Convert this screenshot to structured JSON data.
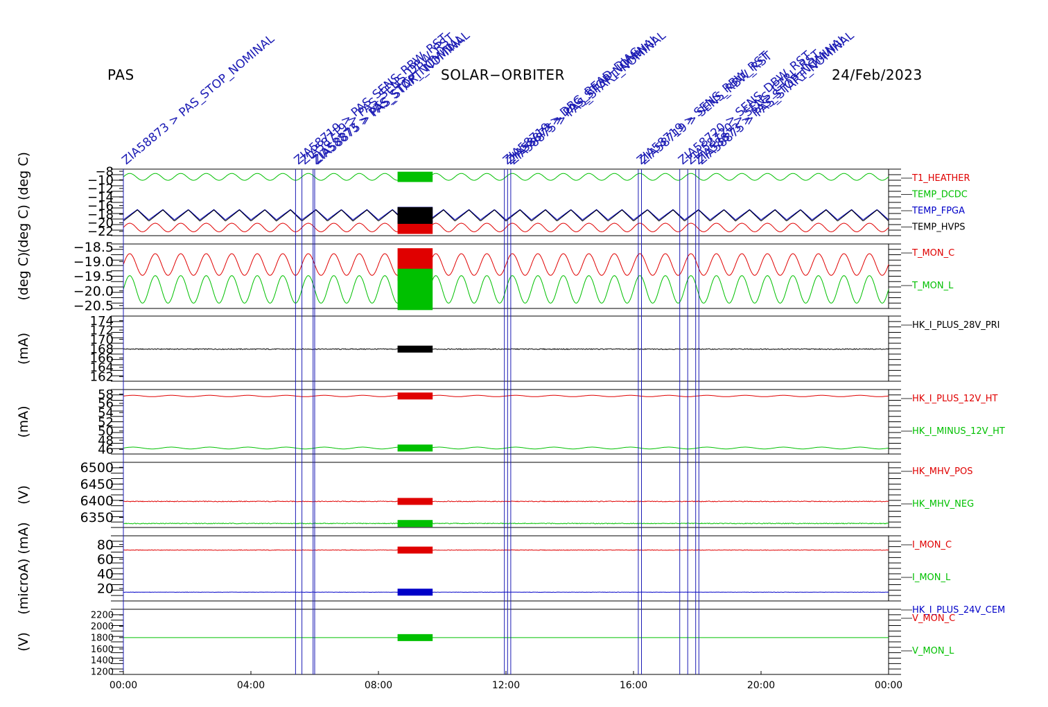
{
  "header": {
    "left": "PAS",
    "center": "SOLAR−ORBITER",
    "right": "24/Feb/2023"
  },
  "colors": {
    "red": "#e00000",
    "green": "#00c000",
    "blue": "#0000c8",
    "black": "#000000",
    "event_line": "#1a1ab4"
  },
  "x_ticks": [
    "00:00",
    "04:00",
    "08:00",
    "12:00",
    "16:00",
    "20:00",
    "00:00"
  ],
  "events": [
    {
      "hour": 0.0,
      "label": "ZIA58873 > PAS_STOP_NOMINAL"
    },
    {
      "hour": 5.4,
      "label": "ZIA58719 > PAS_SENS_RBW_RST"
    },
    {
      "hour": 5.6,
      "label": "ZIA58719 > PAS_SENS_DBW_RST"
    },
    {
      "hour": 5.95,
      "label": "ZIA58873 > PAS_STOP_NOMINAL"
    },
    {
      "hour": 6.0,
      "label": "ZIA58875 > PAS_START_NOMINAL"
    },
    {
      "hour": 11.95,
      "label": "ZIA58719 > DBG_READ_DIAG"
    },
    {
      "hour": 12.05,
      "label": "ZIA58873 > PAS_STOP_NOMINAL"
    },
    {
      "hour": 12.15,
      "label": "ZIA58875 > PAS_START_NOMINAL"
    },
    {
      "hour": 16.15,
      "label": "ZIA58719 > SENS_RBW_RST"
    },
    {
      "hour": 16.25,
      "label": "ZIA58719 > SENS_RBW_RST"
    },
    {
      "hour": 17.45,
      "label": "ZIA58720 > SENS_DBW_RST"
    },
    {
      "hour": 17.7,
      "label": "ZIA58720 > SENS_CTRL_RST"
    },
    {
      "hour": 17.95,
      "label": "ZIA58873 > PAS_STOP_NOMINAL"
    },
    {
      "hour": 18.05,
      "label": "ZIA58875 > PAS_START_NOMINAL"
    }
  ],
  "chart_data": [
    {
      "type": "line",
      "ylabel": "(deg C)  (deg C)",
      "ylim": [
        -23,
        -7.5
      ],
      "yticks": [
        -8,
        -10,
        -12,
        -14,
        -16,
        -18,
        -20,
        -22
      ],
      "tick_labels": [
        "−8",
        "−10",
        "−12",
        "−14",
        "−16",
        "−18",
        "−20",
        "−22"
      ],
      "series": [
        {
          "name": "T1_HEATHER",
          "color": "red",
          "base": -21.1,
          "amp": 1.0,
          "period": 0.8,
          "shape": "sin"
        },
        {
          "name": "TEMP_DCDC",
          "color": "green",
          "base": -9.3,
          "amp": 0.8,
          "period": 0.8,
          "shape": "sin"
        },
        {
          "name": "TEMP_FPGA",
          "color": "blue",
          "base": -18.1,
          "amp": 1.2,
          "period": 0.8,
          "shape": "saw"
        },
        {
          "name": "TEMP_HVPS",
          "color": "black",
          "base": -18.3,
          "amp": 1.3,
          "period": 0.8,
          "shape": "saw"
        }
      ]
    },
    {
      "type": "line",
      "ylabel": "(deg C)",
      "ylim": [
        -20.6,
        -18.4
      ],
      "yticks": [
        -18.5,
        -19.0,
        -19.5,
        -20.0,
        -20.5
      ],
      "tick_labels": [
        "−18.5",
        "−19.0",
        "−19.5",
        "−20.0",
        "−20.5"
      ],
      "series": [
        {
          "name": "T_MON_C",
          "color": "red",
          "base": -19.1,
          "amp": 0.37,
          "period": 0.8,
          "shape": "sin"
        },
        {
          "name": "T_MON_L",
          "color": "green",
          "base": -19.95,
          "amp": 0.47,
          "period": 0.8,
          "shape": "sin"
        }
      ]
    },
    {
      "type": "line",
      "ylabel": "(mA)",
      "ylim": [
        161,
        175
      ],
      "yticks": [
        162,
        164,
        166,
        168,
        170,
        172,
        174
      ],
      "tick_labels": [
        "162",
        "164",
        "166",
        "168",
        "170",
        "172",
        "174"
      ],
      "series": [
        {
          "name": "HK_I_PLUS_28V_PRI",
          "color": "black",
          "base": 167.9,
          "amp": 0.1,
          "period": 0.4,
          "shape": "noise"
        }
      ]
    },
    {
      "type": "line",
      "ylabel": "(mA)",
      "ylim": [
        45,
        59
      ],
      "yticks": [
        46,
        48,
        50,
        52,
        54,
        56,
        58
      ],
      "tick_labels": [
        "46",
        "48",
        "50",
        "52",
        "54",
        "56",
        "58"
      ],
      "series": [
        {
          "name": "HK_I_PLUS_12V_HT",
          "color": "red",
          "base": 57.6,
          "amp": 0.15,
          "period": 1.2,
          "shape": "sin"
        },
        {
          "name": "HK_I_MINUS_12V_HT",
          "color": "green",
          "base": 46.3,
          "amp": 0.2,
          "period": 1.2,
          "shape": "sin"
        }
      ]
    },
    {
      "type": "line",
      "ylabel": "(V)",
      "ylim": [
        6320,
        6515
      ],
      "yticks": [
        6350,
        6400,
        6450,
        6500
      ],
      "tick_labels": [
        "6350",
        "6400",
        "6450",
        "6500"
      ],
      "series": [
        {
          "name": "HK_MHV_POS",
          "color": "red",
          "base": 6398,
          "amp": 1.2,
          "period": 0.5,
          "shape": "noise"
        },
        {
          "name": "HK_MHV_NEG",
          "color": "green",
          "base": 6332,
          "amp": 1.2,
          "period": 0.5,
          "shape": "noise"
        }
      ]
    },
    {
      "type": "line",
      "ylabel": "(microA)  (mA)",
      "ylim": [
        3,
        92
      ],
      "yticks": [
        20,
        40,
        60,
        80
      ],
      "tick_labels": [
        "20",
        "40",
        "60",
        "80"
      ],
      "series": [
        {
          "name": "I_MON_C",
          "color": "red",
          "base": 72.5,
          "amp": 0.4,
          "period": 0.5,
          "shape": "noise"
        },
        {
          "name": "I_MON_L",
          "color": "green",
          "base": 0,
          "amp": 0,
          "period": 1,
          "shape": "none"
        },
        {
          "name": "HK_I_PLUS_24V_CEM",
          "color": "blue",
          "base": 15,
          "amp": 0.2,
          "period": 0.5,
          "shape": "noise"
        }
      ]
    },
    {
      "type": "line",
      "ylabel": "(V)",
      "ylim": [
        1150,
        2300
      ],
      "yticks": [
        1200,
        1400,
        1600,
        1800,
        2000,
        2200
      ],
      "tick_labels": [
        "1200",
        "1400",
        "1600",
        "1800",
        "2000",
        "2200"
      ],
      "series": [
        {
          "name": "V_MON_C",
          "color": "red",
          "base": 0,
          "amp": 0,
          "period": 1,
          "shape": "none"
        },
        {
          "name": "V_MON_L",
          "color": "green",
          "base": 1800,
          "amp": 0,
          "period": 1,
          "shape": "flat"
        }
      ]
    }
  ]
}
